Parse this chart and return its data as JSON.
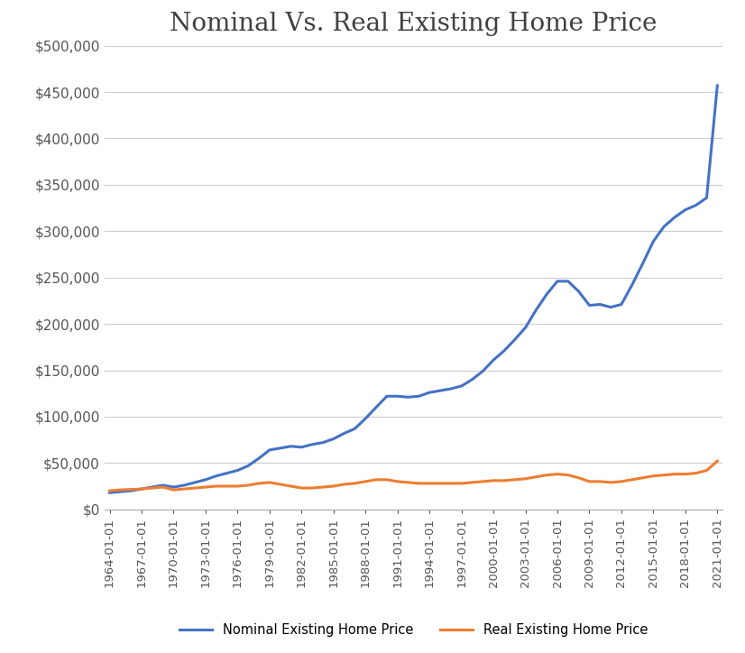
{
  "title": "Nominal Vs. Real Existing Home Price",
  "title_fontsize": 20,
  "background_color": "#ffffff",
  "grid_color": "#cccccc",
  "nominal_color": "#4472c4",
  "real_color": "#ed7d31",
  "line_width": 2.2,
  "ylim": [
    0,
    500000
  ],
  "ytick_step": 50000,
  "legend_labels": [
    "Nominal Existing Home Price",
    "Real Existing Home Price"
  ],
  "x_labels": [
    "1964-01-01",
    "1967-01-01",
    "1970-01-01",
    "1973-01-01",
    "1976-01-01",
    "1979-01-01",
    "1982-01-01",
    "1985-01-01",
    "1988-01-01",
    "1991-01-01",
    "1994-01-01",
    "1997-01-01",
    "2000-01-01",
    "2003-01-01",
    "2006-01-01",
    "2009-01-01",
    "2012-01-01",
    "2015-01-01",
    "2018-01-01",
    "2021-01-01"
  ],
  "years": [
    1964,
    1965,
    1966,
    1967,
    1968,
    1969,
    1970,
    1971,
    1972,
    1973,
    1974,
    1975,
    1976,
    1977,
    1978,
    1979,
    1980,
    1981,
    1982,
    1983,
    1984,
    1985,
    1986,
    1987,
    1988,
    1989,
    1990,
    1991,
    1992,
    1993,
    1994,
    1995,
    1996,
    1997,
    1998,
    1999,
    2000,
    2001,
    2002,
    2003,
    2004,
    2005,
    2006,
    2007,
    2008,
    2009,
    2010,
    2011,
    2012,
    2013,
    2014,
    2015,
    2016,
    2017,
    2018,
    2019,
    2020,
    2021
  ],
  "nominal": [
    18000,
    19000,
    20000,
    22000,
    24000,
    26000,
    24000,
    26000,
    29000,
    32000,
    36000,
    39000,
    42000,
    47000,
    55000,
    64000,
    66000,
    68000,
    67000,
    70000,
    72000,
    76000,
    82000,
    87000,
    98000,
    110000,
    122000,
    122000,
    121000,
    122000,
    126000,
    128000,
    130000,
    133000,
    140000,
    149000,
    161000,
    171000,
    183000,
    196000,
    215000,
    232000,
    246000,
    246000,
    235000,
    220000,
    221000,
    218000,
    221000,
    242000,
    265000,
    289000,
    305000,
    315000,
    323000,
    328000,
    336000,
    457000
  ],
  "real": [
    20000,
    21000,
    21500,
    22000,
    23000,
    24000,
    21000,
    22000,
    23000,
    24000,
    25000,
    25000,
    25000,
    26000,
    28000,
    29000,
    27000,
    25000,
    23000,
    23000,
    24000,
    25000,
    27000,
    28000,
    30000,
    32000,
    32000,
    30000,
    29000,
    28000,
    28000,
    28000,
    28000,
    28000,
    29000,
    30000,
    31000,
    31000,
    32000,
    33000,
    35000,
    37000,
    38000,
    37000,
    34000,
    30000,
    30000,
    29000,
    30000,
    32000,
    34000,
    36000,
    37000,
    38000,
    38000,
    39000,
    42000,
    52000
  ]
}
